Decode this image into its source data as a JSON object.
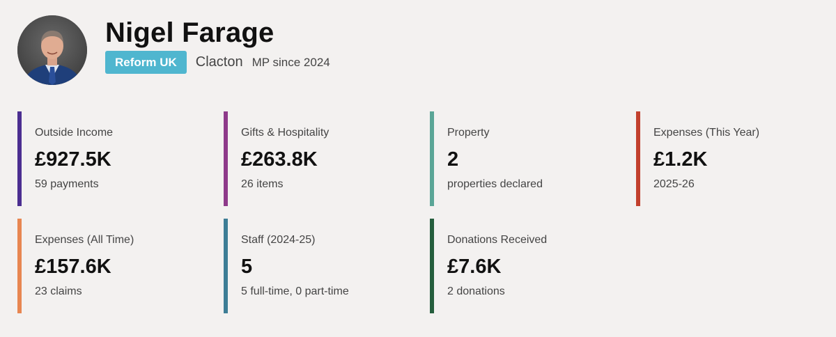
{
  "profile": {
    "name": "Nigel Farage",
    "party": "Reform UK",
    "constituency": "Clacton",
    "since": "MP since 2024",
    "party_color": "#4fb6cf"
  },
  "cards": [
    {
      "label": "Outside Income",
      "value": "£927.5K",
      "sub": "59 payments",
      "color": "#4b2e91"
    },
    {
      "label": "Gifts & Hospitality",
      "value": "£263.8K",
      "sub": "26 items",
      "color": "#8e3a8a"
    },
    {
      "label": "Property",
      "value": "2",
      "sub": "properties declared",
      "color": "#5aa596"
    },
    {
      "label": "Expenses (This Year)",
      "value": "£1.2K",
      "sub": "2025-26",
      "color": "#c2402d"
    },
    {
      "label": "Expenses (All Time)",
      "value": "£157.6K",
      "sub": "23 claims",
      "color": "#e88651"
    },
    {
      "label": "Staff (2024-25)",
      "value": "5",
      "sub": "5 full-time, 0 part-time",
      "color": "#3d7d95"
    },
    {
      "label": "Donations Received",
      "value": "£7.6K",
      "sub": "2 donations",
      "color": "#255e3d"
    }
  ]
}
